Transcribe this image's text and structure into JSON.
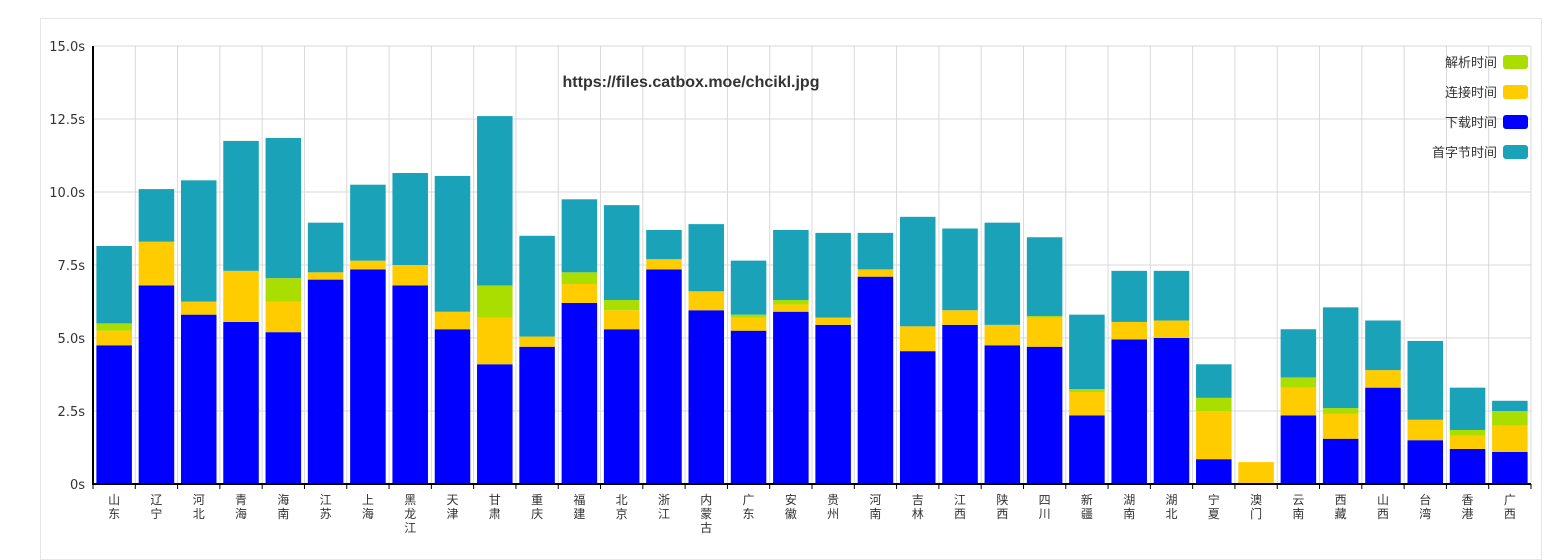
{
  "chart_data": {
    "type": "bar",
    "stacked": true,
    "title": "https://files.catbox.moe/chcikl.jpg",
    "ylim": [
      0,
      15
    ],
    "yticks": [
      "0s",
      "2.5s",
      "5.0s",
      "7.5s",
      "10.0s",
      "12.5s",
      "15.0s"
    ],
    "grid": true,
    "legend_position": "top-right",
    "categories": [
      "山东",
      "辽宁",
      "河北",
      "青海",
      "海南",
      "江苏",
      "上海",
      "黑龙江",
      "天津",
      "甘肃",
      "重庆",
      "福建",
      "北京",
      "浙江",
      "内蒙古",
      "广东",
      "安徽",
      "贵州",
      "河南",
      "吉林",
      "江西",
      "陕西",
      "四川",
      "新疆",
      "湖南",
      "湖北",
      "宁夏",
      "澳门",
      "云南",
      "西藏",
      "山西",
      "台湾",
      "香港",
      "广西"
    ],
    "series": [
      {
        "name": "下载时间",
        "color": "#0000ff",
        "values": [
          4.75,
          6.8,
          5.8,
          5.55,
          5.2,
          7.0,
          7.35,
          6.8,
          5.3,
          4.1,
          4.7,
          6.2,
          5.3,
          7.35,
          5.95,
          5.25,
          5.9,
          5.45,
          7.1,
          4.55,
          5.45,
          4.75,
          4.7,
          2.35,
          4.95,
          5.0,
          0.85,
          0.0,
          2.35,
          1.55,
          3.3,
          1.5,
          1.2,
          1.1
        ]
      },
      {
        "name": "连接时间",
        "color": "#ffcc00",
        "values": [
          0.5,
          1.5,
          0.45,
          1.75,
          1.05,
          0.25,
          0.3,
          0.7,
          0.6,
          1.6,
          0.35,
          0.65,
          0.65,
          0.35,
          0.65,
          0.45,
          0.25,
          0.25,
          0.25,
          0.85,
          0.5,
          0.7,
          1.0,
          0.8,
          0.6,
          0.6,
          1.65,
          0.75,
          0.95,
          0.85,
          0.6,
          0.7,
          0.45,
          0.9
        ]
      },
      {
        "name": "解析时间",
        "color": "#aadd00",
        "values": [
          0.25,
          0.0,
          0.0,
          0.0,
          0.8,
          0.0,
          0.0,
          0.0,
          0.0,
          1.1,
          0.0,
          0.4,
          0.35,
          0.0,
          0.0,
          0.1,
          0.15,
          0.0,
          0.0,
          0.0,
          0.0,
          0.0,
          0.05,
          0.1,
          0.0,
          0.0,
          0.45,
          0.0,
          0.35,
          0.2,
          0.0,
          0.0,
          0.2,
          0.5
        ]
      },
      {
        "name": "首字节时间",
        "color": "#1aa3b8",
        "values": [
          2.65,
          1.8,
          4.15,
          4.45,
          4.8,
          1.7,
          2.6,
          3.15,
          4.65,
          5.8,
          3.45,
          2.5,
          3.25,
          1.0,
          2.3,
          1.85,
          2.4,
          2.9,
          1.25,
          3.75,
          2.8,
          3.5,
          2.7,
          2.55,
          1.75,
          1.7,
          1.15,
          0.0,
          1.65,
          3.45,
          1.7,
          2.7,
          1.45,
          0.35
        ]
      }
    ],
    "legend": [
      "解析时间",
      "连接时间",
      "下载时间",
      "首字节时间"
    ]
  }
}
